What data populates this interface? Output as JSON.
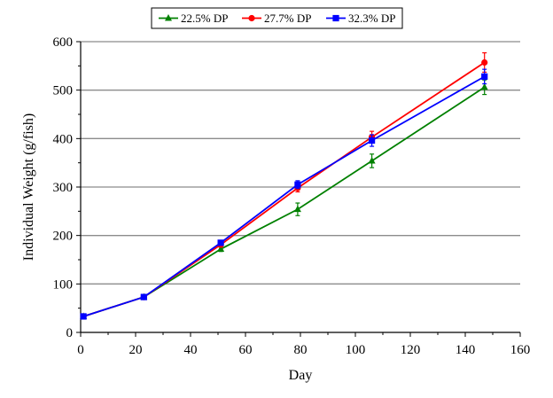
{
  "chart_data": {
    "type": "line",
    "xlabel": "Day",
    "ylabel": "Individual Weight (g/fish)",
    "xlim": [
      0,
      160
    ],
    "ylim": [
      0,
      600
    ],
    "xticks": [
      0,
      20,
      40,
      60,
      80,
      100,
      120,
      140,
      160
    ],
    "yticks": [
      0,
      100,
      200,
      300,
      400,
      500,
      600
    ],
    "grid": "horizontal",
    "legend_position": "top",
    "series": [
      {
        "name": "22.5% DP",
        "color": "#008000",
        "marker": "triangle",
        "x": [
          1,
          23,
          51,
          79,
          106,
          147
        ],
        "y": [
          33,
          73,
          172,
          254,
          354,
          506
        ],
        "error": [
          3,
          3,
          5,
          13,
          14,
          15
        ]
      },
      {
        "name": "27.7% DP",
        "color": "#ff0000",
        "marker": "circle",
        "x": [
          1,
          23,
          51,
          79,
          106,
          147
        ],
        "y": [
          33,
          73,
          181,
          298,
          403,
          557
        ],
        "error": [
          3,
          3,
          5,
          8,
          12,
          20
        ]
      },
      {
        "name": "32.3% DP",
        "color": "#0000ff",
        "marker": "square",
        "x": [
          1,
          23,
          51,
          79,
          106,
          147
        ],
        "y": [
          33,
          73,
          185,
          305,
          396,
          528
        ],
        "error": [
          3,
          3,
          5,
          8,
          12,
          15
        ]
      }
    ]
  }
}
